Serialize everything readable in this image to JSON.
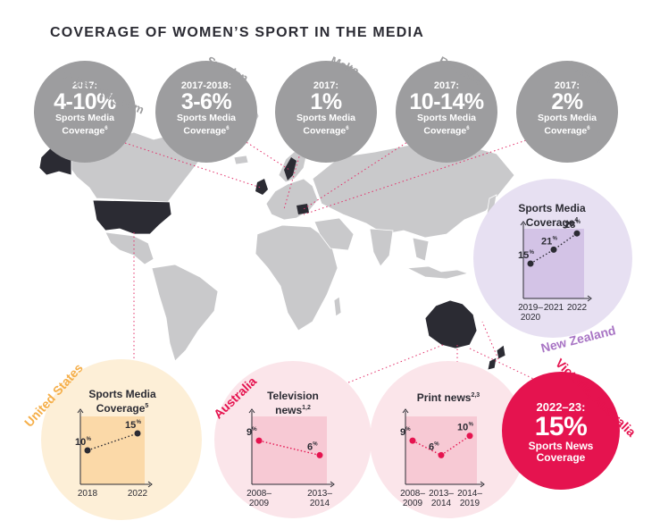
{
  "title": "COVERAGE OF WOMEN’S SPORT IN THE MEDIA",
  "colors": {
    "grey": "#9d9d9f",
    "map": "#c9c9cb",
    "dark": "#2b2b33",
    "pink": "#e5134f",
    "purple": "#a874c4",
    "orange": "#f5ae48"
  },
  "europe": [
    {
      "country": "United Kingdom",
      "year": "2017:",
      "value": "4-10%",
      "caption1": "Sports Media",
      "caption2": "Coverage",
      "ref": "6"
    },
    {
      "country": "Sweden",
      "year": "2017-2018:",
      "value": "3-6%",
      "caption1": "Sports Media",
      "caption2": "Coverage",
      "ref": "6"
    },
    {
      "country": "Malta",
      "year": "2017:",
      "value": "1%",
      "caption1": "Sports Media",
      "caption2": "Coverage",
      "ref": "6"
    },
    {
      "country": "Romania",
      "year": "2017:",
      "value": "10-14%",
      "caption1": "Sports Media",
      "caption2": "Coverage",
      "ref": "6"
    },
    {
      "country": "Greece",
      "year": "2017:",
      "value": "2%",
      "caption1": "Sports Media",
      "caption2": "Coverage",
      "ref": "6"
    }
  ],
  "new_zealand": {
    "country": "New Zealand",
    "title1": "Sports Media",
    "title2": "Coverage",
    "ref": "4"
  },
  "united_states": {
    "country": "United States",
    "title1": "Sports Media",
    "title2": "Coverage",
    "ref": "5"
  },
  "australia_tv": {
    "country": "Australia",
    "title1": "Television",
    "title2": "news",
    "ref": "1,2"
  },
  "australia_print": {
    "title1": "Print news",
    "ref": "2,3"
  },
  "victoria": {
    "country": "Victoria, Australia",
    "year": "2022–23:",
    "value": "15%",
    "caption1": "Sports News",
    "caption2": "Coverage"
  },
  "chart_data": [
    {
      "type": "line",
      "id": "new_zealand",
      "x": [
        "2019–2020",
        "2021",
        "2022"
      ],
      "values": [
        15,
        21,
        28
      ],
      "labels": [
        "15",
        "21",
        "28"
      ],
      "unit": "%"
    },
    {
      "type": "line",
      "id": "united_states",
      "x": [
        "2018",
        "2022"
      ],
      "values": [
        10,
        15
      ],
      "labels": [
        "10",
        "15"
      ],
      "unit": "%"
    },
    {
      "type": "line",
      "id": "australia_tv",
      "x": [
        "2008–2009",
        "2013–2014"
      ],
      "values": [
        9,
        6
      ],
      "labels": [
        "9",
        "6"
      ],
      "unit": "%"
    },
    {
      "type": "line",
      "id": "australia_print",
      "x": [
        "2008–2009",
        "2013–2014",
        "2014–2019"
      ],
      "values": [
        9,
        6,
        10
      ],
      "labels": [
        "9",
        "6",
        "10"
      ],
      "unit": "%"
    }
  ]
}
